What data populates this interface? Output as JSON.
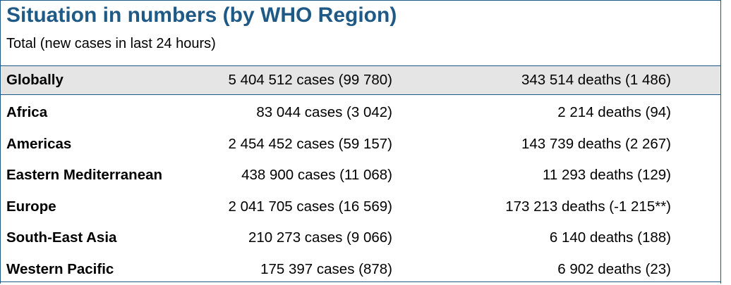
{
  "title": "Situation in numbers (by WHO Region)",
  "subtitle": "Total (new cases in last 24 hours)",
  "colors": {
    "title": "#1f5a87",
    "rule": "#1f5a87",
    "global_row_bg": "#e5e5e5"
  },
  "rows": [
    {
      "region": "Globally",
      "cases": "5 404 512 cases (99 780)",
      "deaths": "343 514 deaths (1 486)"
    },
    {
      "region": "Africa",
      "cases": "83 044 cases (3 042)",
      "deaths": "2 214 deaths (94)"
    },
    {
      "region": "Americas",
      "cases": "2 454 452 cases (59 157)",
      "deaths": "143 739 deaths (2 267)"
    },
    {
      "region": "Eastern Mediterranean",
      "cases": "438 900 cases (11 068)",
      "deaths": "11 293 deaths (129)"
    },
    {
      "region": "Europe",
      "cases": "2 041 705 cases (16 569)",
      "deaths": "173 213 deaths (-1 215**)"
    },
    {
      "region": "South-East Asia",
      "cases": "210 273 cases (9 066)",
      "deaths": "6 140 deaths (188)"
    },
    {
      "region": "Western Pacific",
      "cases": "175 397 cases (878)",
      "deaths": "6 902 deaths (23)"
    }
  ]
}
